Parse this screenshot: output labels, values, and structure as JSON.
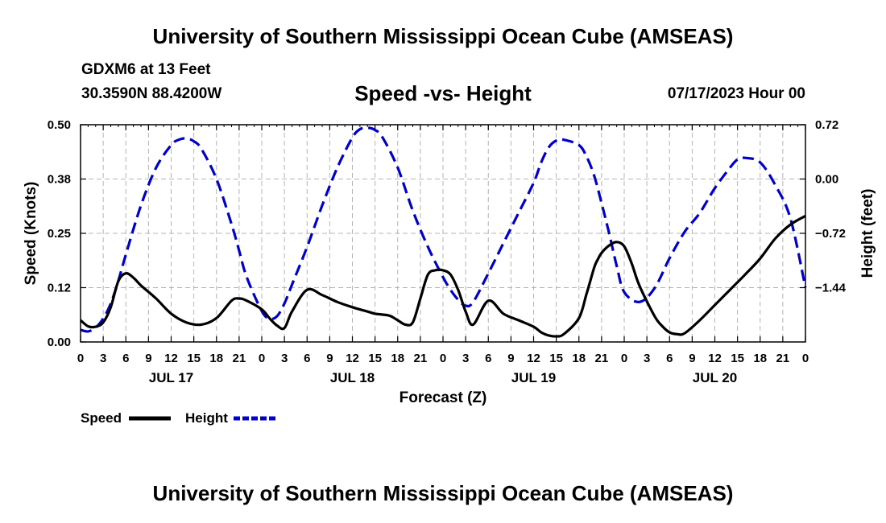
{
  "header": {
    "title": "University of Southern Mississippi Ocean Cube (AMSEAS)",
    "station": "GDXM6 at 13 Feet",
    "coords": "30.3590N   88.4200W",
    "subtitle": "Speed -vs- Height",
    "datetime": "07/17/2023 Hour 00"
  },
  "footer": {
    "title": "University of Southern Mississippi Ocean Cube (AMSEAS)"
  },
  "chart_data": {
    "type": "line",
    "title": "Speed -vs- Height",
    "xlabel": "Forecast (Z)",
    "ylabel": "Speed (Knots)",
    "y2label": "Height (feet)",
    "xlim": [
      0,
      96
    ],
    "ylim": [
      0,
      0.5
    ],
    "y2lim": [
      -2.16,
      0.72
    ],
    "grid": true,
    "x_ticks": [
      0,
      3,
      6,
      9,
      12,
      15,
      18,
      21,
      24,
      27,
      30,
      33,
      36,
      39,
      42,
      45,
      48,
      51,
      54,
      57,
      60,
      63,
      66,
      69,
      72,
      75,
      78,
      81,
      84,
      87,
      90,
      93,
      96
    ],
    "x_tick_labels": [
      "0",
      "3",
      "6",
      "9",
      "12",
      "15",
      "18",
      "21",
      "0",
      "3",
      "6",
      "9",
      "12",
      "15",
      "18",
      "21",
      "0",
      "3",
      "6",
      "9",
      "12",
      "15",
      "18",
      "21",
      "0",
      "3",
      "6",
      "9",
      "12",
      "15",
      "18",
      "21",
      "0"
    ],
    "day_labels": [
      {
        "x": 12,
        "label": "JUL 17"
      },
      {
        "x": 36,
        "label": "JUL 18"
      },
      {
        "x": 60,
        "label": "JUL 19"
      },
      {
        "x": 84,
        "label": "JUL 20"
      }
    ],
    "y_ticks": [
      0.0,
      0.125,
      0.25,
      0.375,
      0.5
    ],
    "y_tick_labels": [
      "0.00",
      "0.12",
      "0.25",
      "0.38",
      "0.50"
    ],
    "y2_ticks": [
      -1.44,
      -0.72,
      0.0,
      0.72
    ],
    "y2_tick_labels": [
      "−1.44",
      "−0.72",
      "0.00",
      "0.72"
    ],
    "legend": [
      {
        "name": "Speed",
        "color": "#000000",
        "dash": "solid"
      },
      {
        "name": "Height",
        "color": "#0000cc",
        "dash": "dashed"
      }
    ],
    "series": [
      {
        "name": "Speed",
        "axis": "left",
        "color": "#000000",
        "x": [
          0,
          1,
          2,
          3,
          4,
          5,
          6,
          7,
          8,
          10,
          12,
          14,
          16,
          18,
          20,
          21,
          22,
          24,
          25,
          26,
          27,
          28,
          30,
          32,
          34,
          36,
          38,
          39,
          40,
          41,
          42,
          43,
          44,
          45,
          46,
          47,
          48,
          49,
          50,
          51,
          52,
          54,
          56,
          58,
          60,
          61,
          62,
          63,
          64,
          66,
          67,
          68,
          68.5,
          69,
          70,
          71,
          72,
          73,
          74,
          76,
          77,
          78,
          79,
          80,
          82,
          84,
          86,
          88,
          90,
          92,
          94,
          96
        ],
        "values": [
          0.05,
          0.036,
          0.035,
          0.045,
          0.08,
          0.14,
          0.158,
          0.148,
          0.13,
          0.1,
          0.065,
          0.045,
          0.04,
          0.055,
          0.095,
          0.1,
          0.095,
          0.075,
          0.055,
          0.038,
          0.032,
          0.07,
          0.12,
          0.108,
          0.092,
          0.08,
          0.07,
          0.065,
          0.063,
          0.06,
          0.05,
          0.04,
          0.045,
          0.1,
          0.155,
          0.165,
          0.165,
          0.155,
          0.12,
          0.07,
          0.04,
          0.095,
          0.065,
          0.05,
          0.035,
          0.022,
          0.015,
          0.013,
          0.018,
          0.055,
          0.11,
          0.17,
          0.19,
          0.205,
          0.222,
          0.23,
          0.22,
          0.18,
          0.13,
          0.06,
          0.037,
          0.022,
          0.018,
          0.02,
          0.05,
          0.085,
          0.12,
          0.155,
          0.192,
          0.238,
          0.27,
          0.29
        ]
      },
      {
        "name": "Height",
        "axis": "right",
        "color": "#0000cc",
        "x": [
          0,
          1,
          2,
          3,
          4,
          5,
          6,
          8,
          10,
          12,
          13,
          14,
          15,
          16,
          18,
          20,
          21,
          22,
          24,
          25,
          26,
          27,
          28,
          30,
          32,
          34,
          36,
          37,
          38,
          39,
          40,
          42,
          44,
          46,
          48,
          49,
          50,
          51,
          52,
          54,
          56,
          58,
          60,
          61,
          62,
          63,
          64,
          66,
          67,
          68,
          69,
          70,
          71,
          72,
          74,
          76,
          78,
          80,
          82,
          84,
          86,
          87,
          88,
          90,
          92,
          94,
          96
        ],
        "values": [
          -2.0,
          -2.02,
          -1.97,
          -1.85,
          -1.65,
          -1.35,
          -1.0,
          -0.35,
          0.15,
          0.45,
          0.52,
          0.54,
          0.5,
          0.4,
          0.0,
          -0.6,
          -0.95,
          -1.3,
          -1.75,
          -1.85,
          -1.82,
          -1.65,
          -1.4,
          -0.9,
          -0.35,
          0.15,
          0.55,
          0.66,
          0.68,
          0.65,
          0.55,
          0.15,
          -0.42,
          -0.9,
          -1.3,
          -1.47,
          -1.6,
          -1.68,
          -1.63,
          -1.25,
          -0.85,
          -0.45,
          -0.05,
          0.22,
          0.42,
          0.51,
          0.52,
          0.45,
          0.3,
          0.05,
          -0.32,
          -0.72,
          -1.15,
          -1.5,
          -1.63,
          -1.45,
          -1.05,
          -0.7,
          -0.45,
          -0.12,
          0.15,
          0.26,
          0.28,
          0.22,
          -0.08,
          -0.52,
          -1.44
        ]
      }
    ]
  }
}
